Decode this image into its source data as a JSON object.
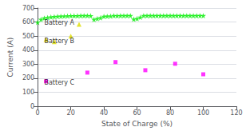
{
  "chart_data": {
    "type": "scatter",
    "title": "",
    "xlabel": "State of Charge (%)",
    "ylabel": "Current (A)",
    "xlim": [
      0,
      120
    ],
    "ylim": [
      0,
      700
    ],
    "xticks": [
      0,
      20,
      40,
      60,
      80,
      100,
      120
    ],
    "yticks": [
      0,
      100,
      200,
      300,
      400,
      500,
      600,
      700
    ],
    "grid": true,
    "series": [
      {
        "name": "Battery A",
        "color": "#00ee00",
        "marker": "star",
        "x": [
          0,
          2,
          4,
          6,
          8,
          10,
          12,
          14,
          16,
          18,
          20,
          22,
          24,
          26,
          28,
          30,
          32,
          34,
          36,
          38,
          40,
          42,
          44,
          46,
          48,
          50,
          52,
          54,
          56,
          58,
          60,
          62,
          64,
          66,
          68,
          70,
          72,
          74,
          76,
          78,
          80,
          82,
          84,
          86,
          88,
          90,
          92,
          94,
          96,
          98,
          100
        ],
        "values": [
          598,
          618,
          628,
          632,
          636,
          638,
          640,
          641,
          642,
          643,
          644,
          644,
          644,
          645,
          645,
          645,
          644,
          618,
          624,
          630,
          640,
          641,
          642,
          645,
          644,
          645,
          645,
          645,
          645,
          620,
          624,
          634,
          645,
          645,
          645,
          645,
          645,
          645,
          645,
          645,
          645,
          645,
          645,
          645,
          645,
          645,
          645,
          645,
          645,
          645,
          645
        ]
      },
      {
        "name": "Battery B",
        "color": "#dddd00",
        "marker": "triangle",
        "x": [
          5,
          10,
          20,
          25
        ],
        "values": [
          475,
          460,
          500,
          583
        ]
      },
      {
        "name": "Battery C",
        "color": "#ff00ff",
        "marker": "square",
        "x": [
          5,
          30,
          47,
          65,
          83,
          100
        ],
        "values": [
          178,
          240,
          315,
          257,
          303,
          228
        ]
      }
    ],
    "annotations": [
      {
        "text": "Battery A",
        "x": 4,
        "y": 573
      },
      {
        "text": "Battery B",
        "x": 4,
        "y": 443
      },
      {
        "text": "Battery C",
        "x": 4,
        "y": 148
      }
    ]
  }
}
